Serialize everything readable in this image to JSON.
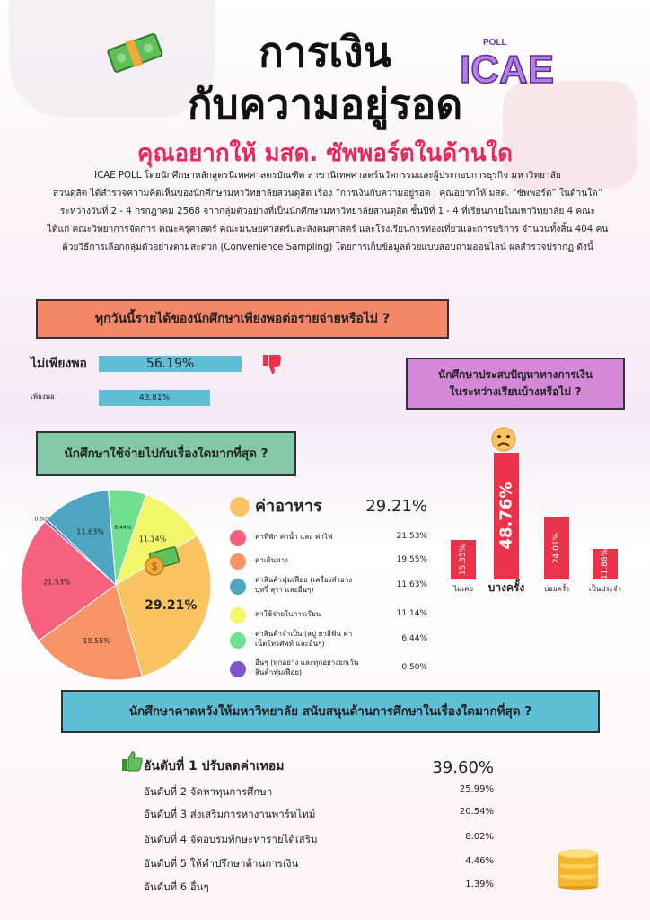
{
  "title_line1": "การเงิน",
  "title_line2": "กับความอยู่รอด",
  "subtitle": "คุณอยากให้ มสด. ซัพพอร์ตในด้านใด",
  "logo_text": "ICAE",
  "logo_small": "POLL",
  "intro_lines": [
    "ICAE POLL โดยนักศึกษาหลักสูตรนิเทศศาสตรบัณฑิต สาขานิเทศศาสตร์นวัตกรรมและผู้ประกอบการธุรกิจ มหาวิทยาลัย",
    "สวนดุสิต ได้สำรวจความคิดเห็นของนักศึกษามหาวิทยาลัยสวนดุสิต เรื่อง “การเงินกับความอยู่รอด : คุณอยากให้ มสด. “ซัพพอร์ต” ในด้านใด“",
    "ระหว่างวันที่ 2 - 4 กรกฎาคม 2568 จากกลุ่มตัวอย่างที่เป็นนักศึกษามหาวิทยาลัยสวนดุสิต ชั้นปีที่ 1 - 4 ที่เรียนภายในมหาวิทยาลัย 4 คณะ",
    "ได้แก่ คณะวิทยาการจัดการ คณะครุศาสตร์ คณะมนุษยศาสตร์และสังคมศาสตร์ และโรงเรียนการท่องเที่ยวและการบริการ จำนวนทั้งสิ้น 404 คน",
    "ด้วยวิธีการเลือกกลุ่มตัวอย่างตามสะดวก (Convenience Sampling) โดยการเก็บข้อมูลด้วยแบบสอบถามออนไลน์ ผลสำรวจปรากฏ ดังนี้"
  ],
  "q1": {
    "header": "ทุกวันนี้รายได้ของนักศึกษาเพียงพอต่อรายจ่ายหรือไม่ ?",
    "rows": [
      {
        "label": "ไม่เพียงพอ",
        "value": 56.19,
        "value_label": "56.19%"
      },
      {
        "label": "เพียงพอ",
        "value": 43.81,
        "value_label": "43.81%"
      }
    ]
  },
  "q2": {
    "header_line1": "นักศึกษาประสบปัญหาทางการเงิน",
    "header_line2": "ในระหว่างเรียนบ้างหรือไม่ ?",
    "columns": [
      {
        "label": "ไม่เคย",
        "value": 15.35,
        "value_label": "15.35%"
      },
      {
        "label": "บางครั้ง",
        "value": 48.76,
        "value_label": "48.76%"
      },
      {
        "label": "บ่อยครั้ง",
        "value": 24.01,
        "value_label": "24.01%"
      },
      {
        "label": "เป็นประจำ",
        "value": 11.88,
        "value_label": "11.88%"
      }
    ]
  },
  "q3": {
    "header": "นักศึกษาใช้จ่ายไปกับเรื่องใดมากที่สุด ?",
    "top": {
      "label": "ค่าอาหาร",
      "value_label": "29.21%"
    },
    "items": [
      {
        "label": "ค่าอาหาร",
        "value": 29.21,
        "value_label": "29.21%",
        "color": "#fbc463"
      },
      {
        "label": "ค่าที่พัก ค่าน้ำ และ ค่าไฟ",
        "value": 21.53,
        "value_label": "21.53%",
        "color": "#f6627e"
      },
      {
        "label": "ค่าเดินทาง",
        "value": 19.55,
        "value_label": "19.55%",
        "color": "#f99467"
      },
      {
        "label": "ค่าสินค้าฟุ่มเฟือย (เครื่องสำอาง บุหรี่ สุรา และอื่นๆ)",
        "value": 11.63,
        "value_label": "11.63%",
        "color": "#4fa6c3"
      },
      {
        "label": "ค่าใช้จ่ายในการเรียน",
        "value": 11.14,
        "value_label": "11.14%",
        "color": "#f3f66b"
      },
      {
        "label": "ค่าสินค้าจำเป็น (สบู่ ยาสีฟัน ค่าเน็ตโทรศัพท์ และอื่นๆ)",
        "value": 6.44,
        "value_label": "6.44%",
        "color": "#6ee08e"
      },
      {
        "label": "อื่นๆ (ทุกอย่าง และทุกอย่างยกเว้นสินค้าฟุ่มเฟือย)",
        "value": 0.5,
        "value_label": "0.50%",
        "color": "#7f55c9"
      }
    ]
  },
  "q4": {
    "header": "นักศึกษาคาดหวังให้มหาวิทยาลัย สนับสนุนด้านการศึกษาในเรื่องใดมากที่สุด ?",
    "ranks": [
      {
        "label": "อันดับที่ 1 ปรับลดค่าเทอม",
        "value_label": "39.60%"
      },
      {
        "label": "อันดับที่ 2 จัดหาทุนการศึกษา",
        "value_label": "25.99%"
      },
      {
        "label": "อันดับที่ 3 ส่งเสริมการหางานพาร์ทไทม์",
        "value_label": "20.54%"
      },
      {
        "label": "อันดับที่ 4 จัดอบรมทักษะหารายได้เสริม",
        "value_label": "8.02%"
      },
      {
        "label": "อันดับที่ 5 ให้คำปรึกษาด้านการเงิน",
        "value_label": "4.46%"
      },
      {
        "label": "อันดับที่ 6 อื่นๆ",
        "value_label": "1.39%"
      }
    ]
  },
  "colors": {
    "accent_red": "#e8334a",
    "bar_blue": "#5ebfd6",
    "subtitle_pink": "#e8285a"
  }
}
